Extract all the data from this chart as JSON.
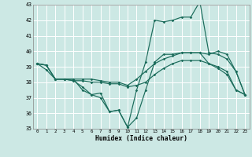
{
  "xlabel": "Humidex (Indice chaleur)",
  "xlim": [
    -0.5,
    23.5
  ],
  "ylim": [
    35,
    43
  ],
  "yticks": [
    35,
    36,
    37,
    38,
    39,
    40,
    41,
    42,
    43
  ],
  "xticks": [
    0,
    1,
    2,
    3,
    4,
    5,
    6,
    7,
    8,
    9,
    10,
    11,
    12,
    13,
    14,
    15,
    16,
    17,
    18,
    19,
    20,
    21,
    22,
    23
  ],
  "background_color": "#cce8e4",
  "line_color": "#1a6b5a",
  "grid_color": "#ffffff",
  "series": [
    [
      39.2,
      39.1,
      38.2,
      38.2,
      38.2,
      37.5,
      37.2,
      37.3,
      36.1,
      36.2,
      35.1,
      37.5,
      39.3,
      42.0,
      41.9,
      42.0,
      42.2,
      42.2,
      43.2,
      39.9,
      39.8,
      39.5,
      38.7,
      37.2
    ],
    [
      39.2,
      39.1,
      38.2,
      38.2,
      38.2,
      38.2,
      38.2,
      38.1,
      38.0,
      38.0,
      37.8,
      38.2,
      38.7,
      39.2,
      39.5,
      39.7,
      39.9,
      39.9,
      39.9,
      39.8,
      40.0,
      39.8,
      38.7,
      37.2
    ],
    [
      39.2,
      39.1,
      38.2,
      38.2,
      38.1,
      38.1,
      38.0,
      38.0,
      37.9,
      37.9,
      37.7,
      37.8,
      38.0,
      38.5,
      38.9,
      39.2,
      39.4,
      39.4,
      39.4,
      39.2,
      39.0,
      38.7,
      37.5,
      37.2
    ],
    [
      39.2,
      38.8,
      38.2,
      38.2,
      38.1,
      37.7,
      37.2,
      37.0,
      36.1,
      36.2,
      35.1,
      35.7,
      37.5,
      39.3,
      39.8,
      39.8,
      39.9,
      39.9,
      39.9,
      39.2,
      38.9,
      38.5,
      37.5,
      37.2
    ]
  ]
}
